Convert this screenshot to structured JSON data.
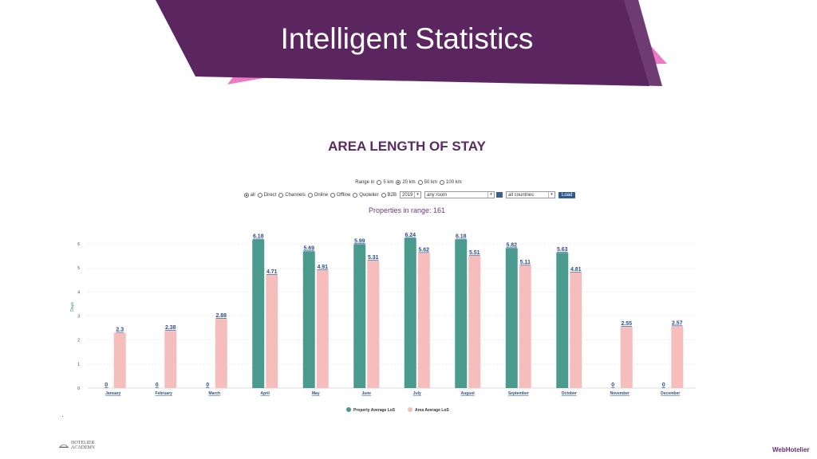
{
  "slide": {
    "banner_title": "Intelligent Statistics",
    "chart_title": "AREA LENGTH OF STAY",
    "colors": {
      "banner_purple": "#5b2660",
      "banner_pink": "#ec79c4",
      "title_purple": "#5b2a62"
    }
  },
  "controls": {
    "range_label": "Range in",
    "range_options": [
      "5 km",
      "20 km",
      "50 km",
      "100 km"
    ],
    "range_selected": "20 km",
    "channel_options": [
      "all",
      "Direct",
      "Channels",
      "Online",
      "Offline",
      "Quotelier",
      "B2B"
    ],
    "channel_selected": "all",
    "year": "2019",
    "room": "any room",
    "country": "all countries",
    "load_label": "Load"
  },
  "properties_in_range": "Properties in range: 161",
  "chart_data": {
    "type": "bar",
    "categories": [
      "January",
      "February",
      "March",
      "April",
      "May",
      "June",
      "July",
      "August",
      "September",
      "October",
      "November",
      "December"
    ],
    "series": [
      {
        "name": "Property Average LoS",
        "color": "#4a9a8e",
        "values": [
          0,
          0,
          0,
          6.18,
          5.69,
          5.99,
          6.24,
          6.18,
          5.82,
          5.63,
          0,
          0
        ],
        "labels": [
          "0",
          "0",
          "0",
          "6.18",
          "5.69",
          "5.99",
          "6.24",
          "6.18",
          "5.82",
          "5.63",
          "0",
          "0"
        ]
      },
      {
        "name": "Area Average LoS",
        "color": "#f6bdbd",
        "values": [
          2.3,
          2.38,
          2.88,
          4.71,
          4.91,
          5.31,
          5.62,
          5.51,
          5.11,
          4.81,
          2.55,
          2.57
        ],
        "labels": [
          "2.3",
          "2.38",
          "2.88",
          "4.71",
          "4.91",
          "5.31",
          "5.62",
          "5.51",
          "5.11",
          "4.81",
          "2.55",
          "2.57"
        ]
      }
    ],
    "ylabel": "Days",
    "ylim": [
      0,
      6.6
    ],
    "yticks": [
      "0",
      "1",
      "2",
      "3",
      "4",
      "5",
      "6"
    ],
    "grid": true,
    "legend": "bottom-center"
  },
  "footer": {
    "left_logo_line1": "HOTELIER",
    "left_logo_line2": "ACADEMY",
    "right_logo": "WebHotelier"
  }
}
